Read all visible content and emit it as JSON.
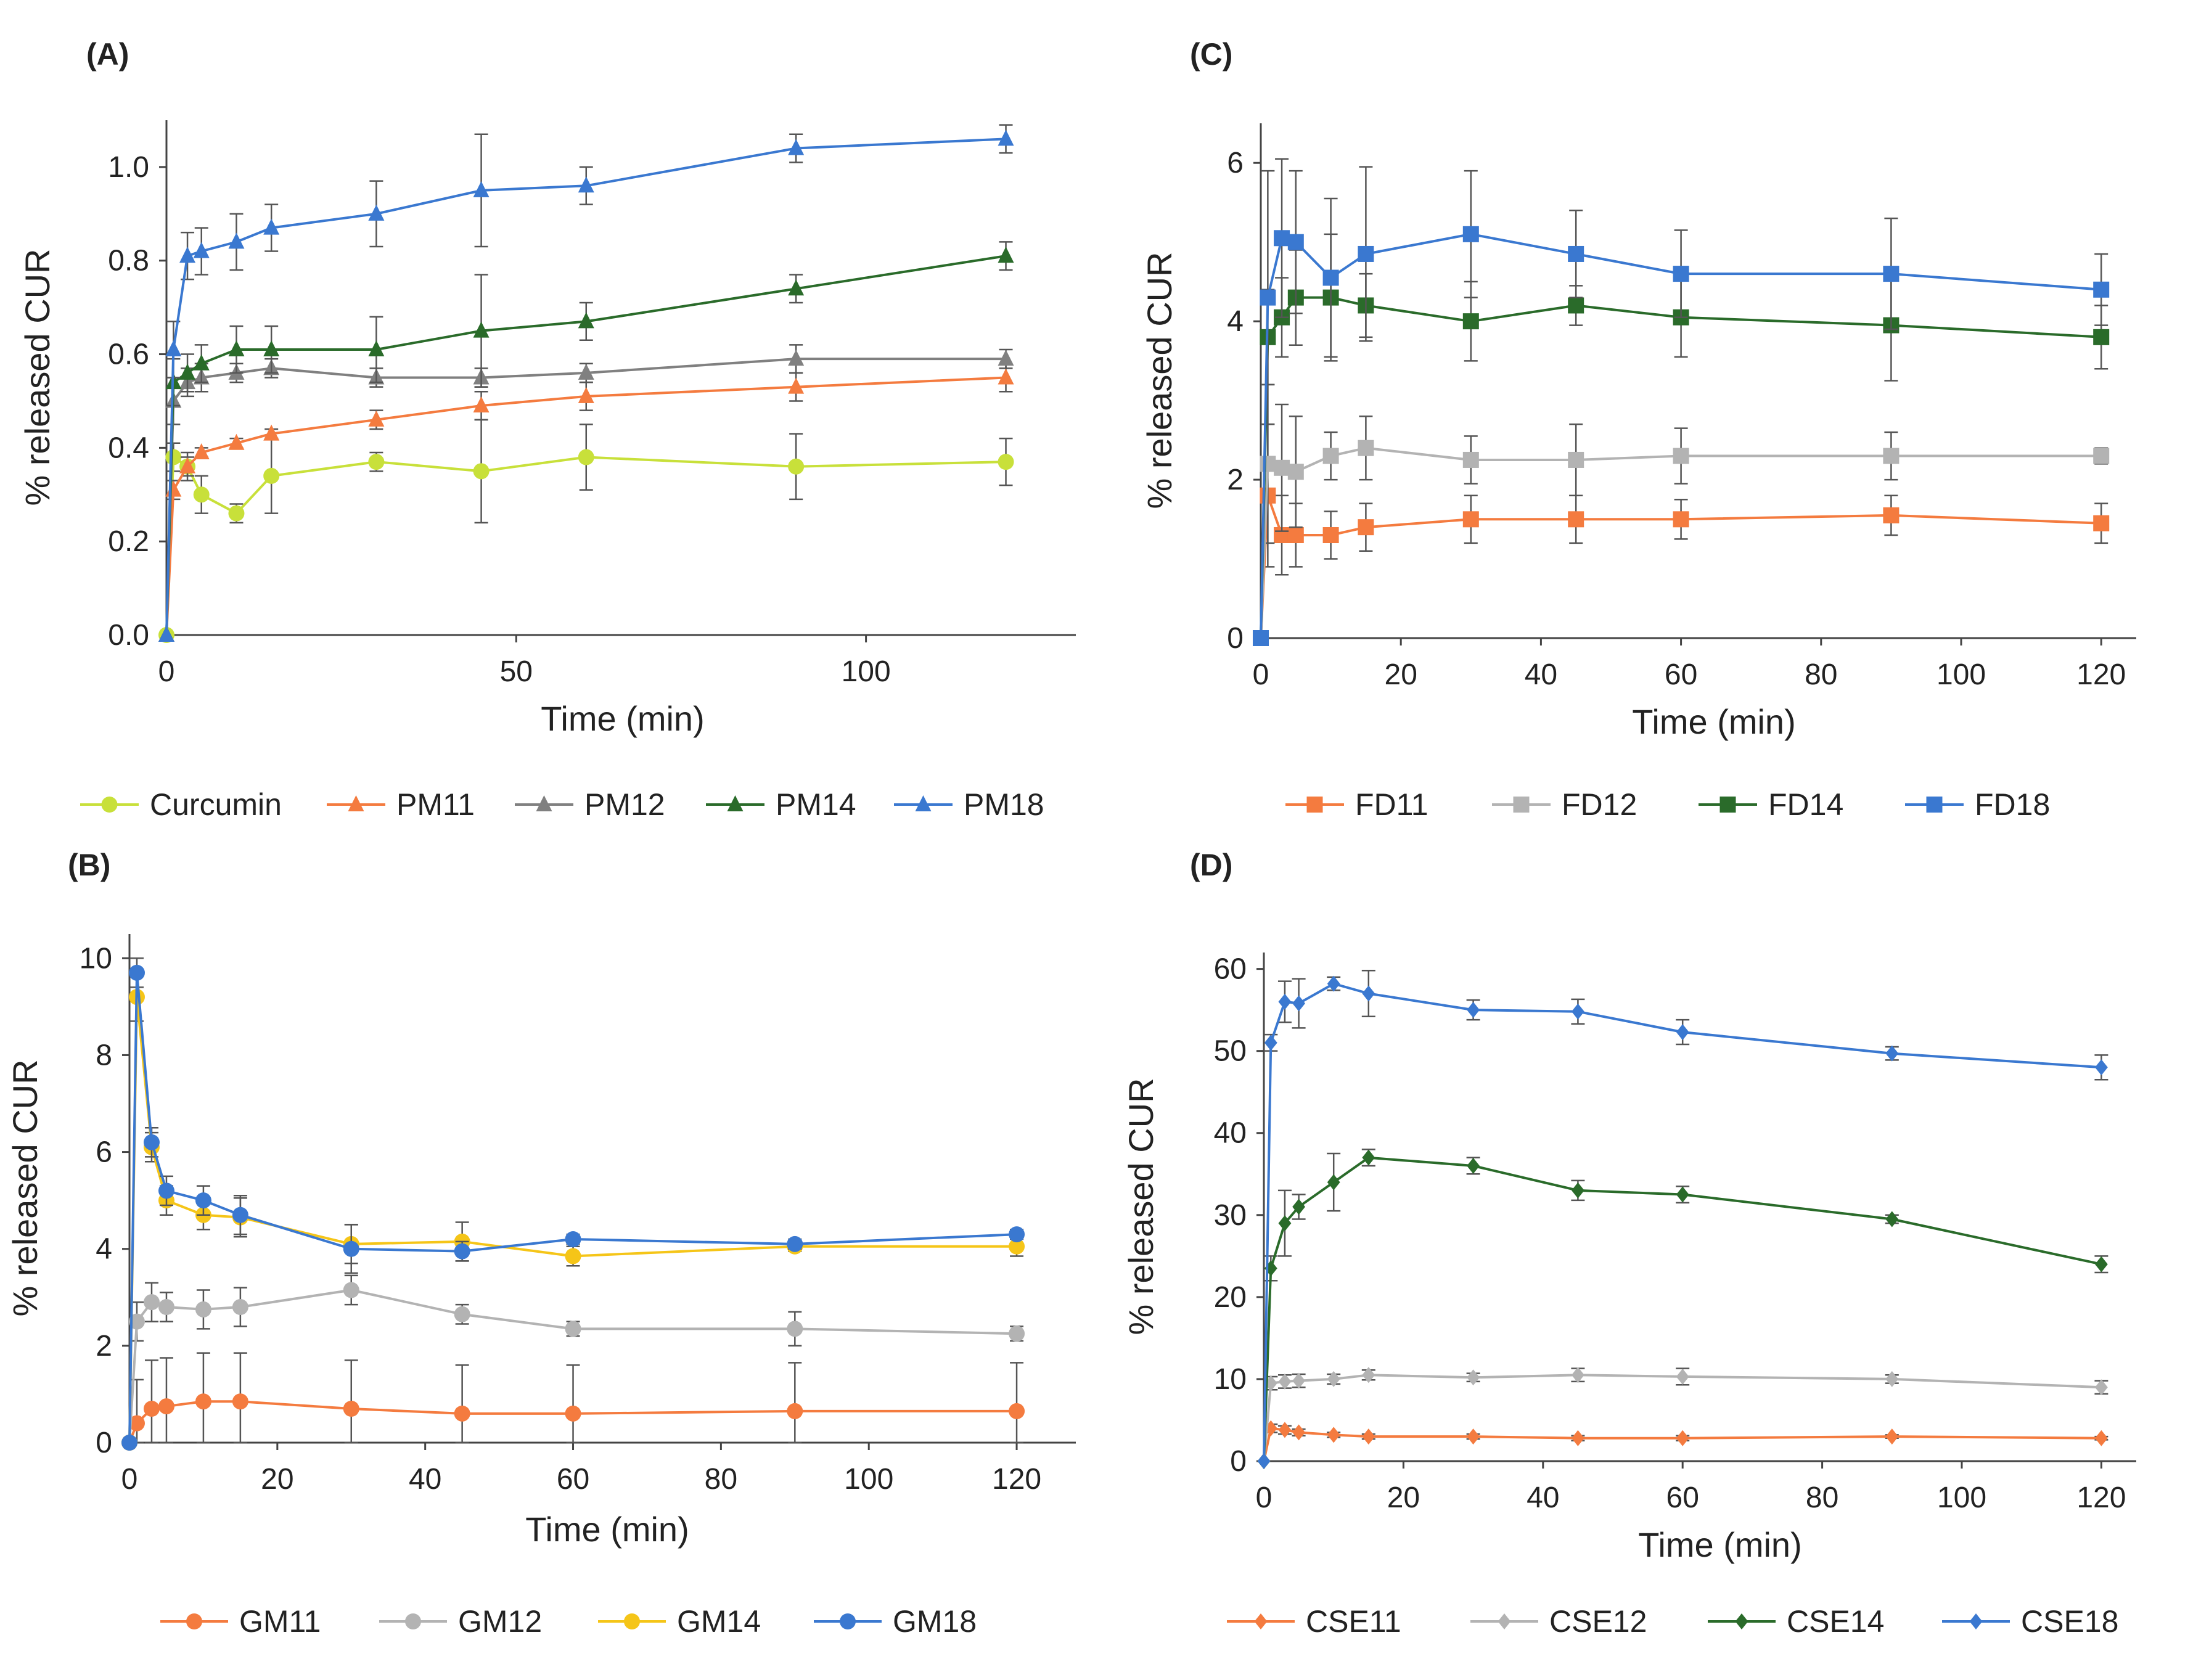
{
  "chart_data": [
    {
      "panel": "(A)",
      "type": "line",
      "xlabel": "Time (min)",
      "ylabel": "% released CUR",
      "xlim": [
        0,
        130
      ],
      "ylim": [
        0,
        1.1
      ],
      "xticks": [
        0,
        50,
        100
      ],
      "yticks": [
        0,
        0.2,
        0.4,
        0.6,
        0.8,
        1.0
      ],
      "ytick_decimals": 1,
      "x": [
        0,
        1,
        3,
        5,
        10,
        15,
        30,
        45,
        60,
        90,
        120
      ],
      "marker": "triangle",
      "legend_position": "bottom",
      "series": [
        {
          "name": "Curcumin",
          "color": "#c8e03a",
          "marker": "circle",
          "values": [
            0,
            0.38,
            0.36,
            0.3,
            0.26,
            0.34,
            0.37,
            0.35,
            0.38,
            0.36,
            0.37
          ],
          "errors": [
            0,
            0.03,
            0.03,
            0.04,
            0.02,
            0.08,
            0.02,
            0.11,
            0.07,
            0.07,
            0.05
          ]
        },
        {
          "name": "PM11",
          "color": "#f47b3f",
          "values": [
            0,
            0.31,
            0.36,
            0.39,
            0.41,
            0.43,
            0.46,
            0.49,
            0.51,
            0.53,
            0.55
          ],
          "errors": [
            0,
            0.02,
            0.02,
            0.01,
            0.01,
            0.01,
            0.02,
            0.03,
            0.03,
            0.03,
            0.03
          ]
        },
        {
          "name": "PM12",
          "color": "#808080",
          "values": [
            0,
            0.5,
            0.54,
            0.55,
            0.56,
            0.57,
            0.55,
            0.55,
            0.56,
            0.59,
            0.59
          ],
          "errors": [
            0,
            0.05,
            0.03,
            0.03,
            0.02,
            0.02,
            0.02,
            0.02,
            0.02,
            0.03,
            0.02
          ]
        },
        {
          "name": "PM14",
          "color": "#2a6b2a",
          "values": [
            0,
            0.54,
            0.56,
            0.58,
            0.61,
            0.61,
            0.61,
            0.65,
            0.67,
            0.74,
            0.81
          ],
          "errors": [
            0,
            0.05,
            0.04,
            0.04,
            0.05,
            0.05,
            0.07,
            0.12,
            0.04,
            0.03,
            0.03
          ]
        },
        {
          "name": "PM18",
          "color": "#3a78d0",
          "values": [
            0,
            0.61,
            0.81,
            0.82,
            0.84,
            0.87,
            0.9,
            0.95,
            0.96,
            1.04,
            1.06
          ],
          "errors": [
            0,
            0.06,
            0.05,
            0.05,
            0.06,
            0.05,
            0.07,
            0.12,
            0.04,
            0.03,
            0.03
          ]
        }
      ]
    },
    {
      "panel": "(C)",
      "type": "line",
      "xlabel": "Time (min)",
      "ylabel": "% released CUR",
      "xlim": [
        0,
        125
      ],
      "ylim": [
        0,
        6.5
      ],
      "xticks": [
        0,
        20,
        40,
        60,
        80,
        100,
        120
      ],
      "yticks": [
        0,
        2,
        4,
        6
      ],
      "ytick_decimals": 0,
      "x": [
        0,
        1,
        3,
        5,
        10,
        15,
        30,
        45,
        60,
        90,
        120
      ],
      "marker": "square",
      "legend_position": "bottom",
      "series": [
        {
          "name": "FD11",
          "color": "#f47b3f",
          "values": [
            0,
            1.8,
            1.3,
            1.3,
            1.3,
            1.4,
            1.5,
            1.5,
            1.5,
            1.55,
            1.45
          ],
          "errors": [
            0,
            0.9,
            0.5,
            0.4,
            0.3,
            0.3,
            0.3,
            0.3,
            0.25,
            0.25,
            0.25
          ]
        },
        {
          "name": "FD12",
          "color": "#b3b3b3",
          "values": [
            0,
            2.2,
            2.15,
            2.1,
            2.3,
            2.4,
            2.25,
            2.25,
            2.3,
            2.3,
            2.3
          ],
          "errors": [
            0,
            1.0,
            0.8,
            0.7,
            0.3,
            0.4,
            0.3,
            0.45,
            0.35,
            0.3,
            0.1
          ]
        },
        {
          "name": "FD14",
          "color": "#2a6b2a",
          "values": [
            0,
            3.8,
            4.05,
            4.3,
            4.3,
            4.2,
            4.0,
            4.2,
            4.05,
            3.95,
            3.8
          ],
          "errors": [
            0,
            0.6,
            0.5,
            0.6,
            0.8,
            0.4,
            0.5,
            0.25,
            0.5,
            0.7,
            0.4
          ]
        },
        {
          "name": "FD18",
          "color": "#3a78d0",
          "values": [
            0,
            4.3,
            5.05,
            5.0,
            4.55,
            4.85,
            5.1,
            4.85,
            4.6,
            4.6,
            4.4
          ],
          "errors": [
            0,
            1.6,
            1.0,
            0.9,
            1.0,
            1.1,
            0.8,
            0.55,
            0.55,
            0.7,
            0.45
          ]
        }
      ]
    },
    {
      "panel": "(B)",
      "type": "line",
      "xlabel": "Time (min)",
      "ylabel": "% released CUR",
      "xlim": [
        0,
        128
      ],
      "ylim": [
        0,
        10.5
      ],
      "xticks": [
        0,
        20,
        40,
        60,
        80,
        100,
        120
      ],
      "yticks": [
        0,
        2,
        4,
        6,
        8,
        10
      ],
      "ytick_decimals": 0,
      "x": [
        0,
        1,
        3,
        5,
        10,
        15,
        30,
        45,
        60,
        90,
        120
      ],
      "marker": "circle",
      "legend_position": "bottom",
      "series": [
        {
          "name": "GM11",
          "color": "#f47b3f",
          "values": [
            0,
            0.4,
            0.7,
            0.75,
            0.85,
            0.85,
            0.7,
            0.6,
            0.6,
            0.65,
            0.65
          ],
          "errors": [
            0,
            0.9,
            1.0,
            1.0,
            1.0,
            1.0,
            1.0,
            1.0,
            1.0,
            1.0,
            1.0
          ]
        },
        {
          "name": "GM12",
          "color": "#b3b3b3",
          "values": [
            0,
            2.5,
            2.9,
            2.8,
            2.75,
            2.8,
            3.15,
            2.65,
            2.35,
            2.35,
            2.25
          ],
          "errors": [
            0,
            0.4,
            0.4,
            0.3,
            0.4,
            0.4,
            0.3,
            0.2,
            0.15,
            0.35,
            0.15
          ]
        },
        {
          "name": "GM14",
          "color": "#f5c518",
          "values": [
            0,
            9.2,
            6.1,
            5.0,
            4.7,
            4.65,
            4.1,
            4.15,
            3.85,
            4.05,
            4.05
          ],
          "errors": [
            0,
            0.5,
            0.3,
            0.3,
            0.3,
            0.4,
            0.4,
            0.4,
            0.2,
            0.1,
            0.2
          ]
        },
        {
          "name": "GM18",
          "color": "#3a78d0",
          "values": [
            0,
            9.7,
            6.2,
            5.2,
            5.0,
            4.7,
            4.0,
            3.95,
            4.2,
            4.1,
            4.3
          ],
          "errors": [
            0,
            0.3,
            0.3,
            0.3,
            0.3,
            0.4,
            0.5,
            0.2,
            0.1,
            0.1,
            0.1
          ]
        }
      ]
    },
    {
      "panel": "(D)",
      "type": "line",
      "xlabel": "Time (min)",
      "ylabel": "% released CUR",
      "xlim": [
        0,
        125
      ],
      "ylim": [
        0,
        62
      ],
      "xticks": [
        0,
        20,
        40,
        60,
        80,
        100,
        120
      ],
      "yticks": [
        0,
        10,
        20,
        30,
        40,
        50,
        60
      ],
      "ytick_decimals": 0,
      "x": [
        0,
        1,
        3,
        5,
        10,
        15,
        30,
        45,
        60,
        90,
        120
      ],
      "marker": "diamond",
      "legend_position": "bottom",
      "series": [
        {
          "name": "CSE11",
          "color": "#f47b3f",
          "values": [
            0,
            4,
            3.8,
            3.5,
            3.2,
            3.0,
            3.0,
            2.8,
            2.8,
            3.0,
            2.8
          ],
          "errors": [
            0,
            0.5,
            0.5,
            0.4,
            0.3,
            0.3,
            0.3,
            0.3,
            0.3,
            0.2,
            0.2
          ]
        },
        {
          "name": "CSE12",
          "color": "#b3b3b3",
          "values": [
            0,
            9.5,
            9.7,
            9.8,
            10.0,
            10.5,
            10.2,
            10.5,
            10.3,
            10.0,
            9.0
          ],
          "errors": [
            0,
            0.8,
            0.8,
            0.8,
            0.6,
            0.6,
            0.5,
            0.8,
            1.0,
            0.5,
            0.8
          ]
        },
        {
          "name": "CSE14",
          "color": "#2a6b2a",
          "values": [
            0,
            23.5,
            29,
            31,
            34,
            37,
            36,
            33,
            32.5,
            29.5,
            24
          ],
          "errors": [
            0,
            1.5,
            4.0,
            1.5,
            3.5,
            1.0,
            1.0,
            1.2,
            1.0,
            0.5,
            1.0
          ]
        },
        {
          "name": "CSE18",
          "color": "#3a78d0",
          "values": [
            0,
            51,
            56,
            55.8,
            58.2,
            57,
            55,
            54.8,
            52.3,
            49.7,
            48
          ],
          "errors": [
            0,
            1.0,
            2.5,
            3.0,
            0.8,
            2.8,
            1.2,
            1.5,
            1.5,
            0.8,
            1.5
          ]
        }
      ]
    }
  ]
}
